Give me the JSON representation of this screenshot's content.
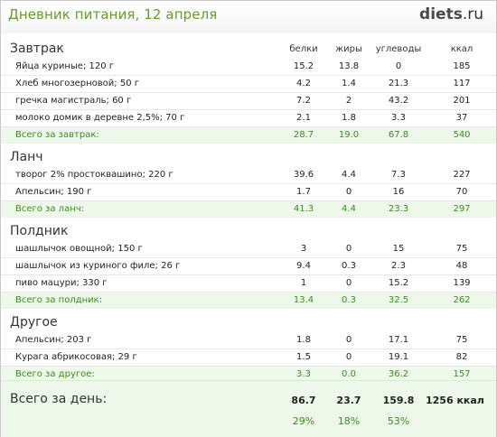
{
  "header": {
    "title": "Дневник питания, 12 апреля",
    "logo_main": "diets",
    "logo_tld": ".ru"
  },
  "columns": {
    "protein": "белки",
    "fat": "жиры",
    "carbs": "углеводы",
    "kcal": "ккал"
  },
  "sections": [
    {
      "name": "Завтрак",
      "items": [
        {
          "name": "Яйца куриные; 120 г",
          "protein": "15.2",
          "fat": "13.8",
          "carbs": "0",
          "kcal": "185"
        },
        {
          "name": "Хлеб многозерновой; 50 г",
          "protein": "4.2",
          "fat": "1.4",
          "carbs": "21.3",
          "kcal": "117"
        },
        {
          "name": "гречка магистраль; 60 г",
          "protein": "7.2",
          "fat": "2",
          "carbs": "43.2",
          "kcal": "201"
        },
        {
          "name": "молоко домик в деревне 2,5%; 70 г",
          "protein": "2.1",
          "fat": "1.8",
          "carbs": "3.3",
          "kcal": "37"
        }
      ],
      "total": {
        "label": "Всего за завтрак:",
        "protein": "28.7",
        "fat": "19.0",
        "carbs": "67.8",
        "kcal": "540"
      }
    },
    {
      "name": "Ланч",
      "items": [
        {
          "name": "творог 2% простоквашино; 220 г",
          "protein": "39.6",
          "fat": "4.4",
          "carbs": "7.3",
          "kcal": "227"
        },
        {
          "name": "Апельсин; 190 г",
          "protein": "1.7",
          "fat": "0",
          "carbs": "16",
          "kcal": "70"
        }
      ],
      "total": {
        "label": "Всего за ланч:",
        "protein": "41.3",
        "fat": "4.4",
        "carbs": "23.3",
        "kcal": "297"
      }
    },
    {
      "name": "Полдник",
      "items": [
        {
          "name": "шашлычок овощной; 150 г",
          "protein": "3",
          "fat": "0",
          "carbs": "15",
          "kcal": "75"
        },
        {
          "name": "шашлычок из куриного филе; 26 г",
          "protein": "9.4",
          "fat": "0.3",
          "carbs": "2.3",
          "kcal": "48"
        },
        {
          "name": "пиво мацури; 330 г",
          "protein": "1",
          "fat": "0",
          "carbs": "15.2",
          "kcal": "139"
        }
      ],
      "total": {
        "label": "Всего за полдник:",
        "protein": "13.4",
        "fat": "0.3",
        "carbs": "32.5",
        "kcal": "262"
      }
    },
    {
      "name": "Другое",
      "items": [
        {
          "name": "Апельсин; 203 г",
          "protein": "1.8",
          "fat": "0",
          "carbs": "17.1",
          "kcal": "75"
        },
        {
          "name": "Курага абрикосовая; 29 г",
          "protein": "1.5",
          "fat": "0",
          "carbs": "19.1",
          "kcal": "82"
        }
      ],
      "total": {
        "label": "Всего за другое:",
        "protein": "3.3",
        "fat": "0.0",
        "carbs": "36.2",
        "kcal": "157"
      }
    }
  ],
  "day_total": {
    "label": "Всего за день:",
    "protein": "86.7",
    "fat": "23.7",
    "carbs": "159.8",
    "kcal": "1256 ккал",
    "protein_pct": "29%",
    "fat_pct": "18%",
    "carbs_pct": "53%"
  }
}
